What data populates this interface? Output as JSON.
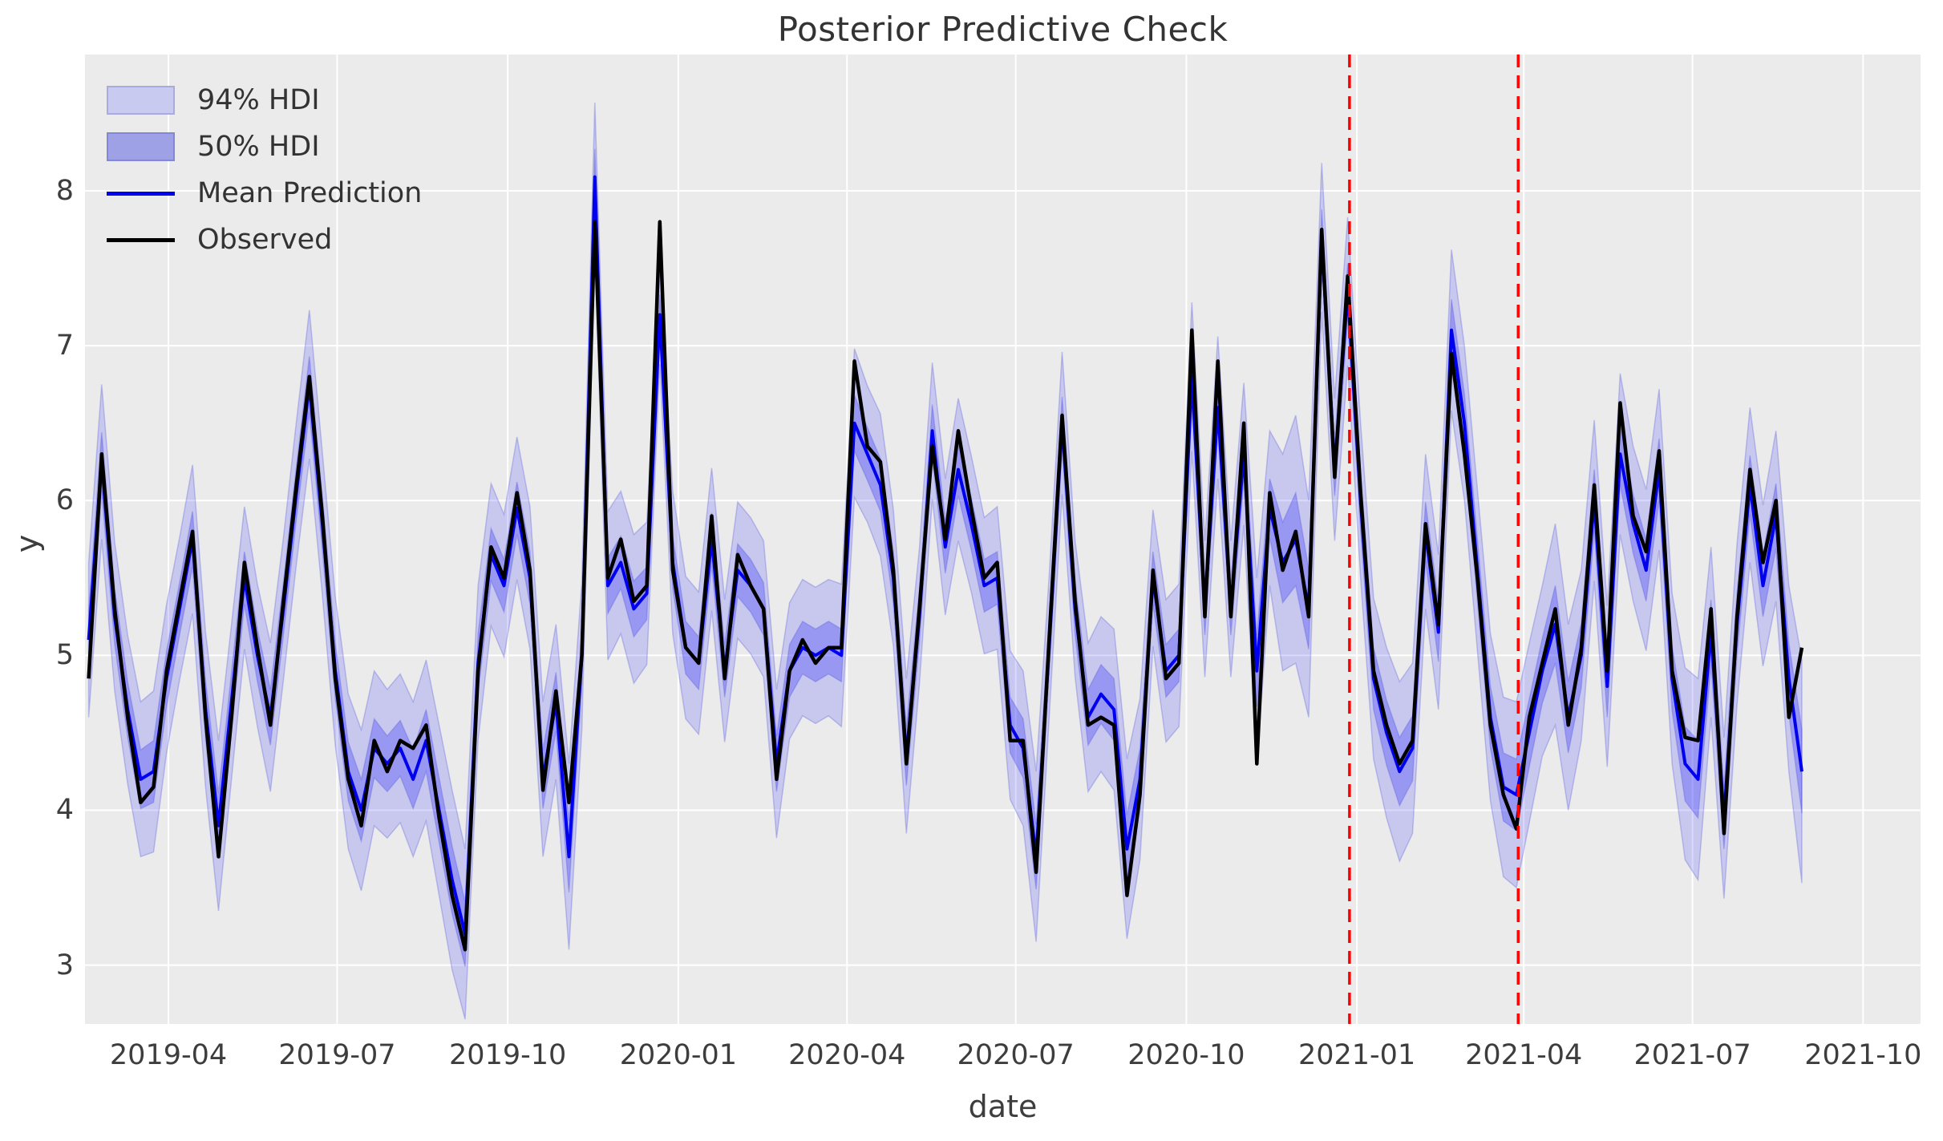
{
  "title": "Posterior Predictive Check",
  "axes": {
    "xlabel": "date",
    "ylabel": "y"
  },
  "legend": {
    "position": "upper left",
    "items": [
      {
        "label": "94% HDI",
        "type": "patch",
        "color": "#c9caf0",
        "edge": "#a9abe0"
      },
      {
        "label": "50% HDI",
        "type": "patch",
        "color": "#9fa1e6",
        "edge": "#8486d6"
      },
      {
        "label": "Mean Prediction",
        "type": "line",
        "color": "#0000ee"
      },
      {
        "label": "Observed",
        "type": "line",
        "color": "#000000"
      }
    ]
  },
  "colors": {
    "figure_bg": "#ffffff",
    "plot_bg": "#ebebeb",
    "grid": "#ffffff",
    "hdi94_fill": "rgba(0,0,255,0.15)",
    "hdi50_fill": "rgba(0,0,255,0.24)",
    "band_edge": "rgba(80,82,215,0.30)",
    "mean_line": "#0000ee",
    "observed_line": "#000000",
    "vline": "#ff0000",
    "text": "#3d3d3d"
  },
  "chart_data": {
    "type": "line",
    "title": "Posterior Predictive Check",
    "xlabel": "date",
    "ylabel": "y",
    "grid": true,
    "legend_position": "upper left",
    "xlim": [
      "2019-02-15",
      "2021-11-01"
    ],
    "ylim": [
      2.62,
      8.88
    ],
    "x_ticks": [
      {
        "date": "2019-04-01",
        "label": "2019-04"
      },
      {
        "date": "2019-07-01",
        "label": "2019-07"
      },
      {
        "date": "2019-10-01",
        "label": "2019-10"
      },
      {
        "date": "2020-01-01",
        "label": "2020-01"
      },
      {
        "date": "2020-04-01",
        "label": "2020-04"
      },
      {
        "date": "2020-07-01",
        "label": "2020-07"
      },
      {
        "date": "2020-10-01",
        "label": "2020-10"
      },
      {
        "date": "2021-01-01",
        "label": "2021-01"
      },
      {
        "date": "2021-04-01",
        "label": "2021-04"
      },
      {
        "date": "2021-07-01",
        "label": "2021-07"
      },
      {
        "date": "2021-10-01",
        "label": "2021-10"
      }
    ],
    "y_ticks": [
      3,
      4,
      5,
      6,
      7,
      8
    ],
    "vlines": [
      {
        "date": "2020-12-28",
        "color": "#ff0000",
        "style": "dashed"
      },
      {
        "date": "2021-03-29",
        "color": "#ff0000",
        "style": "dashed"
      }
    ],
    "x_start": "2019-02-17",
    "x_step_days": 7,
    "n_points": 133,
    "series": [
      {
        "name": "Observed",
        "values": [
          4.85,
          6.3,
          5.3,
          4.6,
          4.05,
          4.15,
          4.9,
          5.35,
          5.8,
          4.6,
          3.7,
          4.6,
          5.6,
          5.05,
          4.55,
          5.35,
          6.1,
          6.8,
          5.9,
          4.85,
          4.2,
          3.9,
          4.45,
          4.25,
          4.45,
          4.4,
          4.55,
          3.95,
          3.45,
          3.1,
          4.9,
          5.7,
          5.5,
          6.05,
          5.55,
          4.13,
          4.77,
          4.05,
          5.0,
          7.8,
          5.5,
          5.75,
          5.35,
          5.45,
          7.8,
          5.55,
          5.05,
          4.95,
          5.9,
          4.85,
          5.65,
          5.45,
          5.3,
          4.2,
          4.9,
          5.1,
          4.95,
          5.05,
          5.05,
          6.9,
          6.35,
          6.25,
          5.55,
          4.3,
          5.3,
          6.35,
          5.75,
          6.45,
          5.95,
          5.5,
          5.6,
          4.45,
          4.45,
          3.6,
          5.1,
          6.55,
          5.35,
          4.55,
          4.6,
          4.55,
          3.45,
          4.1,
          5.55,
          4.85,
          4.95,
          7.1,
          5.25,
          6.9,
          5.25,
          6.5,
          4.3,
          6.05,
          5.55,
          5.8,
          5.25,
          7.75,
          6.15,
          7.45,
          6.05,
          4.9,
          4.55,
          4.3,
          4.45,
          5.85,
          5.2,
          6.95,
          6.3,
          5.5,
          4.55,
          4.1,
          3.88,
          4.6,
          4.95,
          5.3,
          4.55,
          5.05,
          6.1,
          4.9,
          6.63,
          5.9,
          5.67,
          6.32,
          4.9,
          4.47,
          4.45,
          5.3,
          3.85,
          5.25,
          6.2,
          5.6,
          6.0,
          4.6,
          5.05
        ]
      },
      {
        "name": "Mean Prediction",
        "values": [
          5.1,
          6.25,
          5.25,
          4.65,
          4.2,
          4.25,
          4.85,
          5.3,
          5.75,
          4.65,
          3.9,
          4.7,
          5.5,
          5.0,
          4.6,
          5.3,
          6.05,
          6.75,
          5.85,
          4.9,
          4.25,
          4.0,
          4.4,
          4.3,
          4.4,
          4.2,
          4.45,
          4.0,
          3.55,
          3.2,
          4.95,
          5.65,
          5.45,
          5.95,
          5.5,
          4.2,
          4.7,
          3.7,
          5.0,
          8.09,
          5.45,
          5.6,
          5.3,
          5.4,
          7.2,
          5.6,
          5.05,
          4.95,
          5.75,
          4.9,
          5.55,
          5.45,
          5.3,
          4.3,
          4.9,
          5.05,
          5.0,
          5.05,
          5.0,
          6.5,
          6.3,
          6.1,
          5.5,
          4.35,
          5.25,
          6.45,
          5.7,
          6.2,
          5.85,
          5.45,
          5.5,
          4.55,
          4.4,
          3.7,
          5.05,
          6.5,
          5.3,
          4.6,
          4.75,
          4.65,
          3.75,
          4.2,
          5.5,
          4.9,
          5.0,
          6.8,
          5.3,
          6.6,
          5.3,
          6.3,
          4.9,
          5.95,
          5.6,
          5.75,
          5.3,
          7.7,
          6.2,
          7.35,
          6.0,
          4.85,
          4.5,
          4.25,
          4.4,
          5.8,
          5.15,
          7.1,
          6.5,
          5.55,
          4.6,
          4.15,
          4.1,
          4.5,
          4.9,
          5.2,
          4.6,
          5.0,
          6.0,
          4.8,
          6.3,
          5.85,
          5.55,
          6.2,
          4.85,
          4.3,
          4.2,
          5.15,
          3.95,
          5.2,
          6.1,
          5.45,
          5.9,
          4.85,
          4.25
        ]
      }
    ],
    "bands": {
      "hdi94_halfwidth": [
        0.5,
        0.5,
        0.48,
        0.48,
        0.5,
        0.52,
        0.48,
        0.46,
        0.48,
        0.5,
        0.55,
        0.5,
        0.46,
        0.46,
        0.48,
        0.46,
        0.46,
        0.48,
        0.46,
        0.48,
        0.5,
        0.52,
        0.5,
        0.48,
        0.48,
        0.5,
        0.52,
        0.55,
        0.58,
        0.55,
        0.5,
        0.46,
        0.46,
        0.46,
        0.46,
        0.5,
        0.5,
        0.6,
        0.48,
        0.48,
        0.48,
        0.46,
        0.48,
        0.46,
        0.32,
        0.46,
        0.46,
        0.46,
        0.46,
        0.46,
        0.44,
        0.44,
        0.44,
        0.48,
        0.44,
        0.44,
        0.44,
        0.44,
        0.46,
        0.48,
        0.44,
        0.46,
        0.44,
        0.5,
        0.44,
        0.44,
        0.44,
        0.46,
        0.44,
        0.44,
        0.46,
        0.48,
        0.5,
        0.55,
        0.46,
        0.46,
        0.44,
        0.48,
        0.5,
        0.52,
        0.58,
        0.52,
        0.44,
        0.46,
        0.46,
        0.48,
        0.44,
        0.46,
        0.44,
        0.46,
        0.6,
        0.5,
        0.7,
        0.8,
        0.7,
        0.48,
        0.46,
        0.48,
        0.5,
        0.52,
        0.55,
        0.58,
        0.55,
        0.5,
        0.5,
        0.52,
        0.5,
        0.52,
        0.54,
        0.58,
        0.6,
        0.58,
        0.55,
        0.65,
        0.6,
        0.55,
        0.52,
        0.52,
        0.52,
        0.5,
        0.52,
        0.52,
        0.55,
        0.62,
        0.65,
        0.55,
        0.52,
        0.52,
        0.5,
        0.52,
        0.55,
        0.6,
        0.72
      ],
      "hdi50_halfwidth": [
        0.19,
        0.19,
        0.18,
        0.18,
        0.19,
        0.2,
        0.18,
        0.17,
        0.18,
        0.19,
        0.21,
        0.19,
        0.17,
        0.17,
        0.18,
        0.17,
        0.17,
        0.18,
        0.17,
        0.18,
        0.19,
        0.2,
        0.19,
        0.18,
        0.18,
        0.19,
        0.2,
        0.21,
        0.22,
        0.21,
        0.19,
        0.17,
        0.17,
        0.17,
        0.17,
        0.19,
        0.19,
        0.23,
        0.18,
        0.18,
        0.18,
        0.17,
        0.18,
        0.17,
        0.13,
        0.17,
        0.17,
        0.17,
        0.17,
        0.17,
        0.17,
        0.17,
        0.17,
        0.18,
        0.17,
        0.17,
        0.17,
        0.17,
        0.17,
        0.18,
        0.17,
        0.17,
        0.17,
        0.19,
        0.17,
        0.17,
        0.17,
        0.17,
        0.17,
        0.17,
        0.17,
        0.18,
        0.19,
        0.21,
        0.17,
        0.17,
        0.17,
        0.18,
        0.19,
        0.2,
        0.22,
        0.2,
        0.17,
        0.17,
        0.17,
        0.18,
        0.17,
        0.17,
        0.17,
        0.17,
        0.23,
        0.19,
        0.26,
        0.3,
        0.26,
        0.18,
        0.17,
        0.18,
        0.19,
        0.2,
        0.21,
        0.22,
        0.21,
        0.19,
        0.19,
        0.2,
        0.19,
        0.2,
        0.2,
        0.22,
        0.23,
        0.22,
        0.21,
        0.25,
        0.23,
        0.21,
        0.2,
        0.2,
        0.2,
        0.19,
        0.2,
        0.2,
        0.21,
        0.24,
        0.25,
        0.21,
        0.2,
        0.2,
        0.19,
        0.2,
        0.21,
        0.23,
        0.27
      ]
    }
  }
}
